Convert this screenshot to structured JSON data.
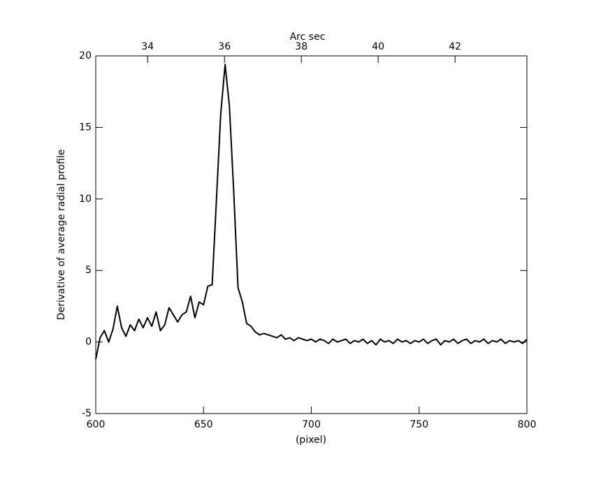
{
  "chart_data": {
    "type": "line",
    "xlabel": "(pixel)",
    "ylabel": "Derivative of average radial profile",
    "x2label": "Arc sec",
    "x": [
      600,
      602,
      604,
      606,
      608,
      610,
      612,
      614,
      616,
      618,
      620,
      622,
      624,
      626,
      628,
      630,
      632,
      634,
      636,
      638,
      640,
      642,
      644,
      646,
      648,
      650,
      652,
      654,
      656,
      658,
      660,
      662,
      664,
      666,
      668,
      670,
      672,
      674,
      676,
      678,
      680,
      682,
      684,
      686,
      688,
      690,
      692,
      694,
      696,
      698,
      700,
      702,
      704,
      706,
      708,
      710,
      712,
      714,
      716,
      718,
      720,
      722,
      724,
      726,
      728,
      730,
      732,
      734,
      736,
      738,
      740,
      742,
      744,
      746,
      748,
      750,
      752,
      754,
      756,
      758,
      760,
      762,
      764,
      766,
      768,
      770,
      772,
      774,
      776,
      778,
      780,
      782,
      784,
      786,
      788,
      790,
      792,
      794,
      796,
      798,
      800
    ],
    "series": [
      {
        "color": "#000000",
        "values": [
          -1.2,
          0.3,
          0.8,
          0,
          0.9,
          2.5,
          1.0,
          0.4,
          1.2,
          0.8,
          1.6,
          1.0,
          1.7,
          1.1,
          2.1,
          0.8,
          1.2,
          2.4,
          1.9,
          1.4,
          1.9,
          2.1,
          3.2,
          1.7,
          2.8,
          2.6,
          3.9,
          4.0,
          10,
          16,
          19.4,
          16.5,
          10.5,
          3.8,
          2.8,
          1.3,
          1.1,
          0.7,
          0.5,
          0.6,
          0.5,
          0.4,
          0.3,
          0.5,
          0.2,
          0.3,
          0.1,
          0.3,
          0.2,
          0.1,
          0.2,
          0.0,
          0.2,
          0.1,
          -0.1,
          0.2,
          0.0,
          0.1,
          0.2,
          -0.1,
          0.1,
          0.0,
          0.2,
          -0.1,
          0.1,
          -0.2,
          0.2,
          0.0,
          0.1,
          -0.1,
          0.2,
          0.0,
          0.1,
          -0.1,
          0.1,
          0.0,
          0.2,
          -0.1,
          0.1,
          0.2,
          -0.2,
          0.1,
          0.0,
          0.2,
          -0.1,
          0.1,
          0.2,
          -0.1,
          0.1,
          0.0,
          0.2,
          -0.1,
          0.1,
          0.0,
          0.2,
          -0.1,
          0.1,
          0.0,
          0.1,
          -0.1,
          0.2
        ]
      }
    ],
    "xlim": [
      600,
      800
    ],
    "xticks": [
      600,
      650,
      700,
      750,
      800
    ],
    "ylim": [
      -5,
      20
    ],
    "yticks": [
      -5,
      0,
      5,
      10,
      15,
      20
    ],
    "x2lim": [
      32.65,
      43.87
    ],
    "x2ticks": [
      34,
      36,
      38,
      40,
      42
    ],
    "grid": false
  }
}
